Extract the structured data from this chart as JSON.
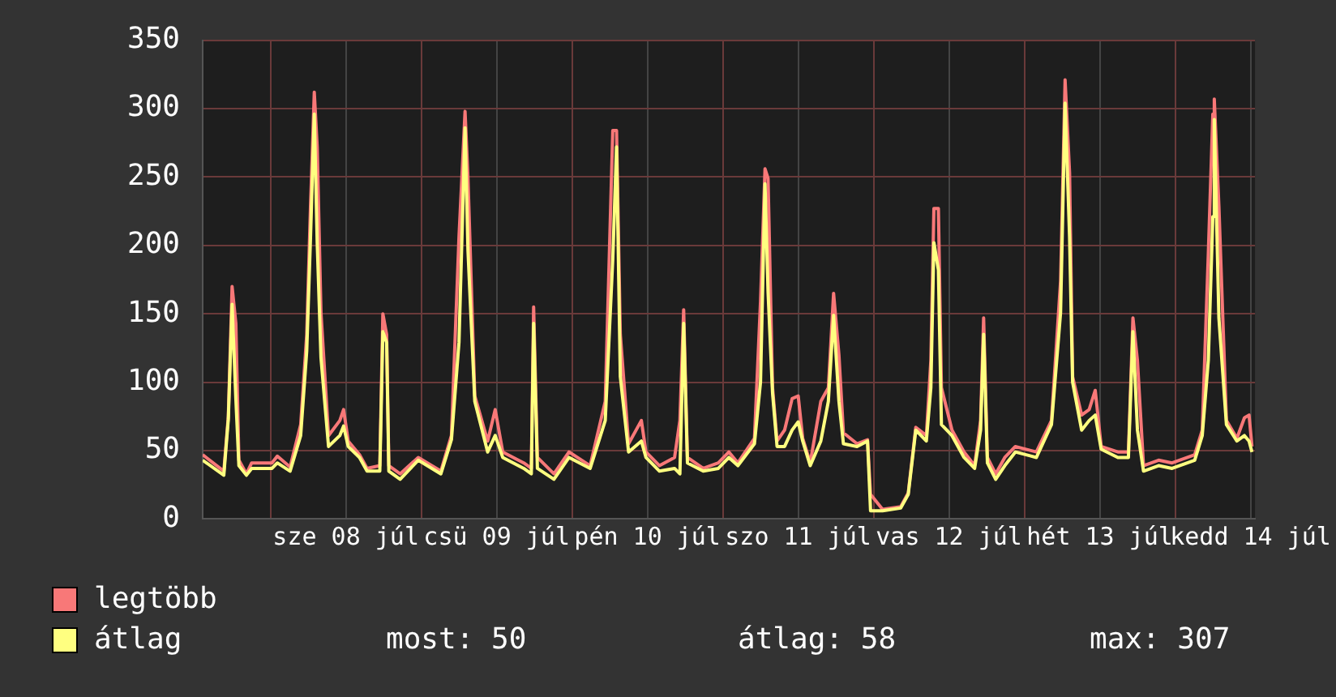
{
  "chart_data": {
    "type": "line",
    "x": [
      "--07-07T13:12",
      "--07-07T16:34",
      "--07-07T17:17",
      "--07-07T17:53",
      "--07-07T18:29",
      "--07-07T18:58",
      "--07-07T20:10",
      "--07-07T21:00",
      "--07-08T00:14",
      "--07-08T01:05",
      "--07-08T03:07",
      "--07-08T04:48",
      "--07-08T05:46",
      "--07-08T06:22",
      "--07-08T06:58",
      "--07-08T07:26",
      "--07-08T08:02",
      "--07-08T09:14",
      "--07-08T11:02",
      "--07-08T11:38",
      "--07-08T12:22",
      "--07-08T14:10",
      "--07-08T15:22",
      "--07-08T17:24",
      "--07-08T17:53",
      "--07-08T18:29",
      "--07-08T18:50",
      "--07-08T20:38",
      "--07-08T23:31",
      "--07-09T03:07",
      "--07-09T04:48",
      "--07-09T06:00",
      "--07-09T06:58",
      "--07-09T07:26",
      "--07-09T08:31",
      "--07-09T10:34",
      "--07-09T11:46",
      "--07-09T12:58",
      "--07-09T16:19",
      "--07-09T17:31",
      "--07-09T17:53",
      "--07-09T18:29",
      "--07-09T21:07",
      "--07-09T23:31",
      "--07-10T02:53",
      "--07-10T05:17",
      "--07-10T06:29",
      "--07-10T07:05",
      "--07-10T07:41",
      "--07-10T09:00",
      "--07-10T11:02",
      "--07-10T11:46",
      "--07-10T13:55",
      "--07-10T16:19",
      "--07-10T17:10",
      "--07-10T17:46",
      "--07-10T18:22",
      "--07-10T20:53",
      "--07-10T23:17",
      "--07-11T00:58",
      "--07-11T02:24",
      "--07-11T05:02",
      "--07-11T06:00",
      "--07-11T06:43",
      "--07-11T07:12",
      "--07-11T07:55",
      "--07-11T08:38",
      "--07-11T09:50",
      "--07-11T11:02",
      "--07-11T12:00",
      "--07-11T12:43",
      "--07-11T13:55",
      "--07-11T15:36",
      "--07-11T16:48",
      "--07-11T17:38",
      "--07-11T18:29",
      "--07-11T19:12",
      "--07-11T21:22",
      "--07-11T23:02",
      "--07-11T23:31",
      "--07-12T01:26",
      "--07-12T04:19",
      "--07-12T05:31",
      "--07-12T06:43",
      "--07-12T08:24",
      "--07-12T09:07",
      "--07-12T09:36",
      "--07-12T10:19",
      "--07-12T10:48",
      "--07-12T12:29",
      "--07-12T14:24",
      "--07-12T16:05",
      "--07-12T17:02",
      "--07-12T17:31",
      "--07-12T18:07",
      "--07-12T19:26",
      "--07-12T20:53",
      "--07-12T22:34",
      "--07-13T01:55",
      "--07-13T04:19",
      "--07-13T05:46",
      "--07-13T06:29",
      "--07-13T07:12",
      "--07-13T07:41",
      "--07-13T09:07",
      "--07-13T10:19",
      "--07-13T11:17",
      "--07-13T12:14",
      "--07-13T14:53",
      "--07-13T16:34",
      "--07-13T17:17",
      "--07-13T18:00",
      "--07-13T18:58",
      "--07-13T21:22",
      "--07-13T23:31",
      "--07-14T03:07",
      "--07-14T04:19",
      "--07-14T05:17",
      "--07-14T06:00",
      "--07-14T06:14",
      "--07-14T06:58",
      "--07-14T08:10",
      "--07-14T09:50",
      "--07-14T11:02",
      "--07-14T11:46",
      "--07-14T12:14"
    ],
    "series": [
      {
        "name": "legtöbb",
        "color": "#f87878",
        "values": [
          47,
          35,
          75,
          170,
          143,
          43,
          33,
          41,
          41,
          46,
          38,
          69,
          135,
          229,
          312,
          272,
          151,
          61,
          72,
          80,
          57,
          47,
          37,
          39,
          150,
          135,
          39,
          33,
          45,
          35,
          61,
          206,
          298,
          249,
          90,
          57,
          80,
          49,
          41,
          37,
          155,
          45,
          33,
          49,
          39,
          86,
          284,
          284,
          135,
          55,
          72,
          49,
          39,
          45,
          72,
          153,
          45,
          37,
          41,
          49,
          41,
          59,
          159,
          256,
          249,
          96,
          57,
          65,
          88,
          90,
          59,
          41,
          86,
          96,
          165,
          120,
          63,
          55,
          58,
          18,
          7,
          9,
          19,
          67,
          61,
          116,
          227,
          227,
          96,
          65,
          49,
          39,
          72,
          147,
          45,
          33,
          45,
          53,
          49,
          72,
          174,
          321,
          253,
          104,
          76,
          80,
          94,
          53,
          49,
          49,
          147,
          116,
          39,
          43,
          41,
          47,
          65,
          194,
          296,
          307,
          229,
          72,
          59,
          74,
          76,
          53
        ]
      },
      {
        "name": "átlag",
        "color": "#ffff80",
        "values": [
          43,
          32,
          73,
          157,
          88,
          39,
          32,
          37,
          37,
          41,
          35,
          61,
          123,
          206,
          296,
          202,
          118,
          53,
          61,
          68,
          53,
          45,
          35,
          35,
          137,
          129,
          35,
          29,
          43,
          33,
          58,
          129,
          286,
          196,
          86,
          49,
          61,
          45,
          37,
          33,
          143,
          37,
          29,
          45,
          37,
          72,
          190,
          272,
          104,
          49,
          57,
          45,
          35,
          37,
          33,
          143,
          41,
          35,
          37,
          45,
          39,
          55,
          100,
          245,
          166,
          92,
          53,
          53,
          65,
          71,
          57,
          39,
          57,
          86,
          149,
          86,
          55,
          53,
          57,
          6,
          6,
          8,
          18,
          65,
          57,
          96,
          202,
          182,
          69,
          61,
          45,
          37,
          65,
          135,
          41,
          29,
          39,
          49,
          45,
          69,
          151,
          304,
          206,
          100,
          65,
          72,
          76,
          51,
          45,
          45,
          137,
          65,
          35,
          39,
          37,
          43,
          61,
          116,
          221,
          292,
          147,
          69,
          57,
          61,
          57,
          49
        ]
      }
    ],
    "xlim": [
      "--07-07T13:12",
      "--07-14T12:43"
    ],
    "xticks": [
      {
        "value": "--07-08T00:00",
        "label": null
      },
      {
        "value": "--07-08T12:00",
        "label": "sze 08 júl"
      },
      {
        "value": "--07-09T00:00",
        "label": null
      },
      {
        "value": "--07-09T12:00",
        "label": "csü 09 júl"
      },
      {
        "value": "--07-10T00:00",
        "label": null
      },
      {
        "value": "--07-10T12:00",
        "label": "pén 10 júl"
      },
      {
        "value": "--07-11T00:00",
        "label": null
      },
      {
        "value": "--07-11T12:00",
        "label": "szo 11 júl"
      },
      {
        "value": "--07-12T00:00",
        "label": null
      },
      {
        "value": "--07-12T12:00",
        "label": "vas 12 júl"
      },
      {
        "value": "--07-13T00:00",
        "label": null
      },
      {
        "value": "--07-13T12:00",
        "label": "hét 13 júl"
      },
      {
        "value": "--07-14T00:00",
        "label": null
      },
      {
        "value": "--07-14T12:00",
        "label": "kedd 14 júl"
      }
    ],
    "ylim": [
      0,
      350
    ],
    "yticks": [
      0,
      50,
      100,
      150,
      200,
      250,
      300,
      350
    ],
    "grid": true,
    "legend": "bottom left",
    "marker": "none",
    "line_style": "solid",
    "annotations": [
      "most: 50",
      "átlag: 58",
      "max: 307"
    ]
  }
}
